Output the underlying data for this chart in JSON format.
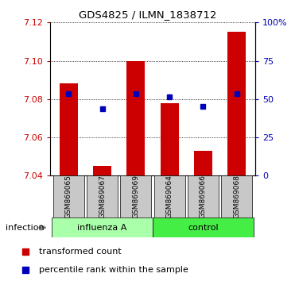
{
  "title": "GDS4825 / ILMN_1838712",
  "samples": [
    "GSM869065",
    "GSM869067",
    "GSM869069",
    "GSM869064",
    "GSM869066",
    "GSM869068"
  ],
  "group_labels": [
    "influenza A",
    "control"
  ],
  "factor_label": "infection",
  "ylim": [
    7.04,
    7.12
  ],
  "yticks": [
    7.04,
    7.06,
    7.08,
    7.1,
    7.12
  ],
  "ytick_labels": [
    "7.04",
    "7.06",
    "7.08",
    "7.10",
    "7.12"
  ],
  "right_yticks_pct": [
    0,
    25,
    50,
    75,
    100
  ],
  "right_ytick_labels": [
    "0",
    "25",
    "50",
    "75",
    "100%"
  ],
  "transformed_counts": [
    7.088,
    7.045,
    7.1,
    7.078,
    7.053,
    7.115
  ],
  "percentile_ranks_y": [
    7.083,
    7.075,
    7.083,
    7.081,
    7.076,
    7.083
  ],
  "bar_color": "#cc0000",
  "dot_color": "#0000bb",
  "baseline": 7.04,
  "influenza_color": "#aaffaa",
  "control_color": "#44ee44",
  "sample_box_color": "#c8c8c8",
  "legend_items": [
    "transformed count",
    "percentile rank within the sample"
  ],
  "bar_width": 0.55
}
